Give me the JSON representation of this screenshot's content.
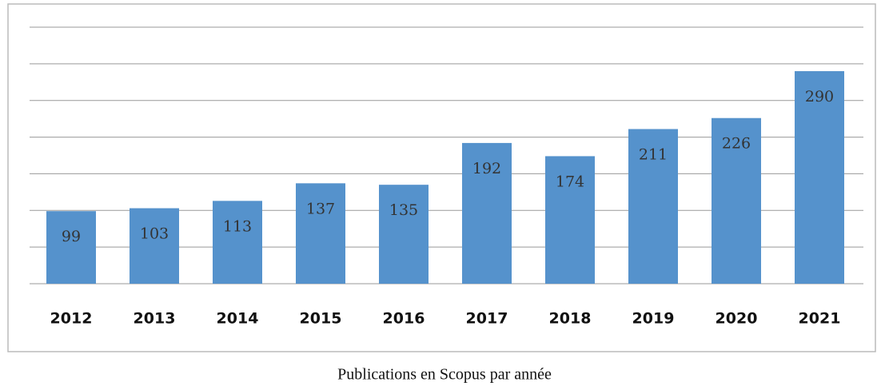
{
  "chart_data": {
    "type": "bar",
    "title": "Publications en Scopus par année",
    "categories": [
      "2012",
      "2013",
      "2014",
      "2015",
      "2016",
      "2017",
      "2018",
      "2019",
      "2020",
      "2021"
    ],
    "values": [
      99,
      103,
      113,
      137,
      135,
      192,
      174,
      211,
      226,
      290
    ],
    "color": "#5592cc",
    "ylim": [
      0,
      350
    ],
    "yticks": [
      0,
      50,
      100,
      150,
      200,
      250,
      300,
      350
    ],
    "grid": true
  }
}
